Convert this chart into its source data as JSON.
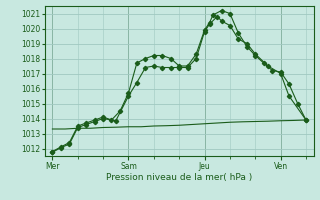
{
  "xlabel": "Pression niveau de la mer( hPa )",
  "bg_color": "#c8e8e0",
  "grid_color": "#a0c8c0",
  "line_color": "#1a5c1a",
  "ymin": 1011.5,
  "ymax": 1021.5,
  "yticks": [
    1012,
    1013,
    1014,
    1015,
    1016,
    1017,
    1018,
    1019,
    1020,
    1021
  ],
  "day_labels": [
    "Mer",
    "Sam",
    "Jeu",
    "Ven"
  ],
  "day_positions": [
    0,
    3,
    6,
    9
  ],
  "xmin": -0.3,
  "xmax": 10.3,
  "series1": {
    "x": [
      0,
      0.33,
      0.67,
      1.0,
      1.33,
      1.67,
      2.0,
      2.33,
      2.67,
      3.0,
      3.33,
      3.67,
      4.0,
      4.33,
      4.67,
      5.0,
      5.33,
      5.67,
      6.0,
      6.2,
      6.33,
      6.67,
      7.0,
      7.33,
      7.67,
      8.0,
      8.33,
      8.67,
      9.0,
      9.33,
      9.67,
      10.0
    ],
    "y": [
      1011.8,
      1012.1,
      1012.4,
      1013.5,
      1013.7,
      1013.9,
      1014.1,
      1013.9,
      1014.5,
      1015.7,
      1017.7,
      1018.0,
      1018.2,
      1018.2,
      1018.0,
      1017.5,
      1017.5,
      1018.3,
      1019.9,
      1020.4,
      1020.9,
      1021.2,
      1021.0,
      1019.7,
      1018.8,
      1018.2,
      1017.7,
      1017.2,
      1017.1,
      1016.3,
      1015.0,
      1013.9
    ]
  },
  "series2": {
    "x": [
      0,
      0.33,
      0.67,
      1.0,
      1.33,
      1.67,
      2.0,
      2.5,
      3.0,
      3.33,
      3.67,
      4.0,
      4.33,
      4.67,
      5.0,
      5.33,
      5.67,
      6.0,
      6.2,
      6.5,
      6.67,
      7.0,
      7.33,
      7.67,
      8.0,
      8.5,
      9.0,
      9.33,
      10.0
    ],
    "y": [
      1011.75,
      1012.05,
      1012.3,
      1013.4,
      1013.6,
      1013.8,
      1014.0,
      1013.85,
      1015.5,
      1016.4,
      1017.4,
      1017.5,
      1017.4,
      1017.4,
      1017.4,
      1017.4,
      1018.0,
      1019.8,
      1020.3,
      1020.8,
      1020.5,
      1020.2,
      1019.3,
      1019.0,
      1018.3,
      1017.5,
      1017.0,
      1015.5,
      1013.9
    ]
  },
  "series3": {
    "x": [
      0,
      0.5,
      1.0,
      1.5,
      2.0,
      2.5,
      3.0,
      3.5,
      4.0,
      4.5,
      5.0,
      5.5,
      6.0,
      6.5,
      7.0,
      7.5,
      8.0,
      8.5,
      9.0,
      9.5,
      10.0
    ],
    "y": [
      1013.3,
      1013.3,
      1013.35,
      1013.35,
      1013.4,
      1013.42,
      1013.45,
      1013.45,
      1013.5,
      1013.52,
      1013.55,
      1013.6,
      1013.65,
      1013.7,
      1013.75,
      1013.78,
      1013.8,
      1013.82,
      1013.85,
      1013.87,
      1013.9
    ]
  }
}
